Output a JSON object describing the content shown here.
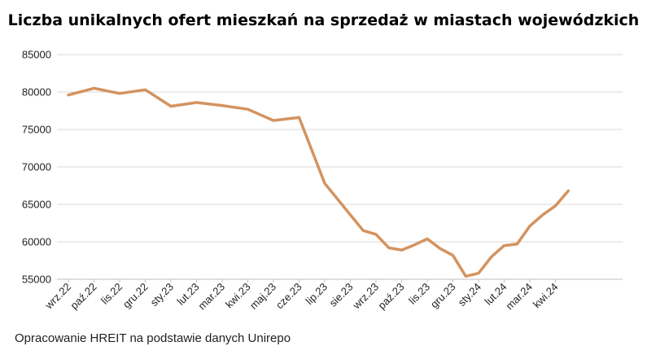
{
  "chart_data": {
    "type": "line",
    "title": "Liczba unikalnych ofert mieszkań na sprzedaż w miastach wojewódzkich",
    "source": "Opracowanie HREIT na podstawie danych Unirepo",
    "ylim": [
      55000,
      85000
    ],
    "yticks": [
      55000,
      60000,
      65000,
      70000,
      75000,
      80000,
      85000
    ],
    "xtick_labels": [
      "wrz.22",
      "paź.22",
      "lis.22",
      "gru.22",
      "sty.23",
      "lut.23",
      "mar.23",
      "kwi.23",
      "maj.23",
      "cze.23",
      "lip.23",
      "sie.23",
      "wrz.23",
      "paź.23",
      "lis.23",
      "gru.23",
      "sty.24",
      "lut.24",
      "mar.24",
      "kwi.24"
    ],
    "x": [
      0,
      1,
      2,
      3,
      4,
      5,
      6,
      7,
      8,
      9,
      10,
      11,
      11.5,
      12,
      12.5,
      13,
      13.5,
      14,
      14.5,
      15,
      15.5,
      16,
      16.5,
      17,
      17.5,
      18,
      18.5,
      19,
      19.5
    ],
    "values": [
      79600,
      80500,
      79800,
      80300,
      78100,
      78600,
      78200,
      77700,
      76200,
      76600,
      67800,
      63600,
      61500,
      61000,
      59200,
      58900,
      59600,
      60400,
      59100,
      58200,
      55400,
      55800,
      58000,
      59500,
      59700,
      62100,
      63600,
      64800,
      66800
    ],
    "grid": true,
    "legend": false,
    "line_color": "#d4935f",
    "grid_color": "#d9d9d9"
  }
}
